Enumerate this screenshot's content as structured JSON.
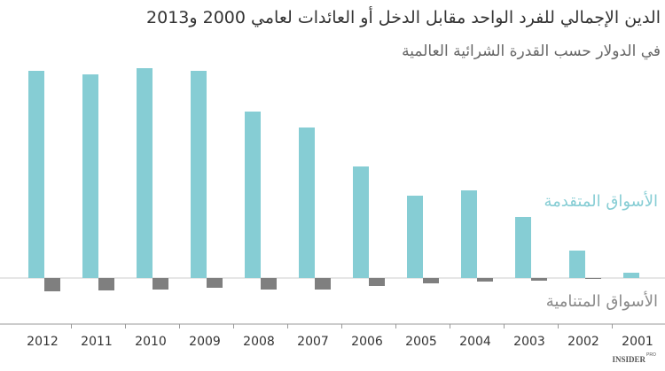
{
  "chart_data": {
    "type": "bar",
    "title": "الدين الإجمالي للفرد الواحد مقابل الدخل أو العائدات لعامي 2000 و2013",
    "subtitle": "في الدولار حسب القدرة الشرائية العالمية",
    "categories": [
      "2012",
      "2011",
      "2010",
      "2009",
      "2008",
      "2007",
      "2006",
      "2005",
      "2004",
      "2003",
      "2002",
      "2001"
    ],
    "series": [
      {
        "name": "الأسواق المتقدمة",
        "color": "#86cdd4",
        "values": [
          234,
          230,
          237,
          234,
          188,
          170,
          126,
          93,
          99,
          69,
          31,
          6
        ]
      },
      {
        "name": "الأسواق المتنامية",
        "color": "#7f7f7f",
        "values": [
          -15,
          -14,
          -13,
          -11,
          -13,
          -13,
          -9,
          -6,
          -4,
          -3,
          -1,
          0
        ]
      }
    ]
  },
  "footer": {
    "brand": "INSIDER",
    "sup": "PRO"
  }
}
